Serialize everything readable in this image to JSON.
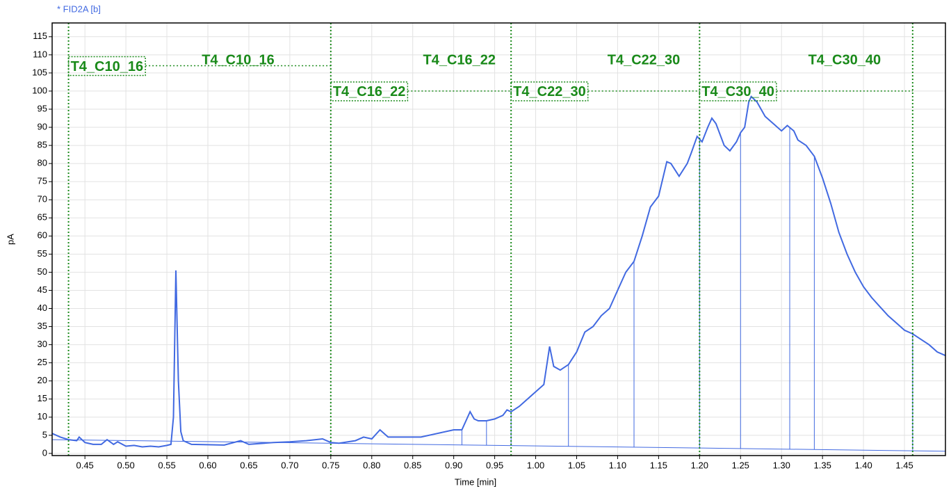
{
  "chart_data": {
    "type": "line",
    "title": "* FID2A [b]",
    "xlabel": "Time [min]",
    "ylabel": "pA",
    "xlim": [
      0.41,
      1.5
    ],
    "ylim": [
      -0.6,
      118.8
    ],
    "xticks": [
      {
        "value": 0.45,
        "label": "0.45"
      },
      {
        "value": 0.5,
        "label": "0.50"
      },
      {
        "value": 0.55,
        "label": "0.55"
      },
      {
        "value": 0.6,
        "label": "0.60"
      },
      {
        "value": 0.65,
        "label": "0.65"
      },
      {
        "value": 0.7,
        "label": "0.70"
      },
      {
        "value": 0.75,
        "label": "0.75"
      },
      {
        "value": 0.8,
        "label": "0.80"
      },
      {
        "value": 0.85,
        "label": "0.85"
      },
      {
        "value": 0.9,
        "label": "0.90"
      },
      {
        "value": 0.95,
        "label": "0.95"
      },
      {
        "value": 1.0,
        "label": "1.00"
      },
      {
        "value": 1.05,
        "label": "1.05"
      },
      {
        "value": 1.1,
        "label": "1.10"
      },
      {
        "value": 1.15,
        "label": "1.15"
      },
      {
        "value": 1.2,
        "label": "1.20"
      },
      {
        "value": 1.25,
        "label": "1.25"
      },
      {
        "value": 1.3,
        "label": "1.30"
      },
      {
        "value": 1.35,
        "label": "1.35"
      },
      {
        "value": 1.4,
        "label": "1.40"
      },
      {
        "value": 1.45,
        "label": "1.45"
      }
    ],
    "yticks": [
      0,
      5,
      10,
      15,
      20,
      25,
      30,
      35,
      40,
      45,
      50,
      55,
      60,
      65,
      70,
      75,
      80,
      85,
      90,
      95,
      100,
      105,
      110,
      115
    ],
    "grid": true,
    "series": [
      {
        "name": "FID2A",
        "color": "#4169e1",
        "x": [
          0.41,
          0.42,
          0.43,
          0.44,
          0.443,
          0.45,
          0.46,
          0.47,
          0.477,
          0.485,
          0.49,
          0.5,
          0.51,
          0.52,
          0.53,
          0.54,
          0.55,
          0.555,
          0.558,
          0.561,
          0.564,
          0.567,
          0.57,
          0.58,
          0.6,
          0.62,
          0.64,
          0.65,
          0.68,
          0.7,
          0.72,
          0.74,
          0.75,
          0.76,
          0.78,
          0.79,
          0.8,
          0.81,
          0.82,
          0.84,
          0.86,
          0.88,
          0.9,
          0.91,
          0.915,
          0.92,
          0.925,
          0.93,
          0.94,
          0.95,
          0.96,
          0.965,
          0.97,
          0.98,
          0.99,
          1.0,
          1.01,
          1.017,
          1.022,
          1.03,
          1.04,
          1.05,
          1.06,
          1.07,
          1.08,
          1.09,
          1.1,
          1.11,
          1.12,
          1.13,
          1.14,
          1.15,
          1.16,
          1.165,
          1.175,
          1.185,
          1.19,
          1.197,
          1.203,
          1.21,
          1.215,
          1.22,
          1.23,
          1.237,
          1.245,
          1.25,
          1.255,
          1.26,
          1.263,
          1.27,
          1.28,
          1.29,
          1.3,
          1.307,
          1.315,
          1.32,
          1.33,
          1.34,
          1.35,
          1.36,
          1.37,
          1.38,
          1.39,
          1.4,
          1.41,
          1.42,
          1.43,
          1.44,
          1.45,
          1.46,
          1.47,
          1.48,
          1.49,
          1.5
        ],
        "values": [
          5.5,
          4.5,
          3.8,
          3.5,
          4.5,
          3,
          2.5,
          2.5,
          3.8,
          2.5,
          3.2,
          2,
          2.2,
          1.8,
          2,
          1.8,
          2.2,
          2.5,
          10,
          50.5,
          20,
          6,
          3.5,
          2.5,
          2.4,
          2.3,
          3.5,
          2.5,
          3,
          3.2,
          3.5,
          4,
          3,
          2.8,
          3.5,
          4.5,
          4,
          6.5,
          4.5,
          4.5,
          4.5,
          5.5,
          6.5,
          6.5,
          9,
          11.5,
          9.5,
          9,
          9,
          9.5,
          10.5,
          12,
          11.5,
          13,
          15,
          17,
          19,
          29.5,
          24,
          23,
          24.5,
          28,
          33.5,
          35,
          38,
          40,
          45,
          50,
          53,
          60,
          68,
          71,
          80.5,
          80,
          76.5,
          80,
          83,
          87.5,
          86,
          90,
          92.5,
          91,
          85,
          83.5,
          86,
          88.5,
          90,
          97,
          98.5,
          97,
          93,
          91,
          89,
          90.5,
          89,
          86.5,
          85,
          82,
          76,
          69,
          61,
          55,
          50,
          46,
          43,
          40.5,
          38,
          36,
          34,
          33,
          31.5,
          30,
          28,
          27
        ]
      }
    ],
    "baseline_x": [
      0.41,
      1.5
    ],
    "baseline_values": [
      3.8,
      0.6
    ],
    "drop_lines": [
      0.91,
      0.94,
      0.97,
      1.04,
      1.12,
      1.2,
      1.25,
      1.31,
      1.34,
      1.46
    ],
    "regions_color": "#1a8a1a",
    "regions": [
      {
        "name": "T4_C10_16",
        "start": 0.43,
        "end": 0.75,
        "level": 107
      },
      {
        "name": "T4_C16_22",
        "start": 0.75,
        "end": 0.97,
        "level": 100
      },
      {
        "name": "T4_C22_30",
        "start": 0.97,
        "end": 1.2,
        "level": 100
      },
      {
        "name": "T4_C30_40",
        "start": 1.2,
        "end": 1.46,
        "level": 100
      }
    ]
  }
}
